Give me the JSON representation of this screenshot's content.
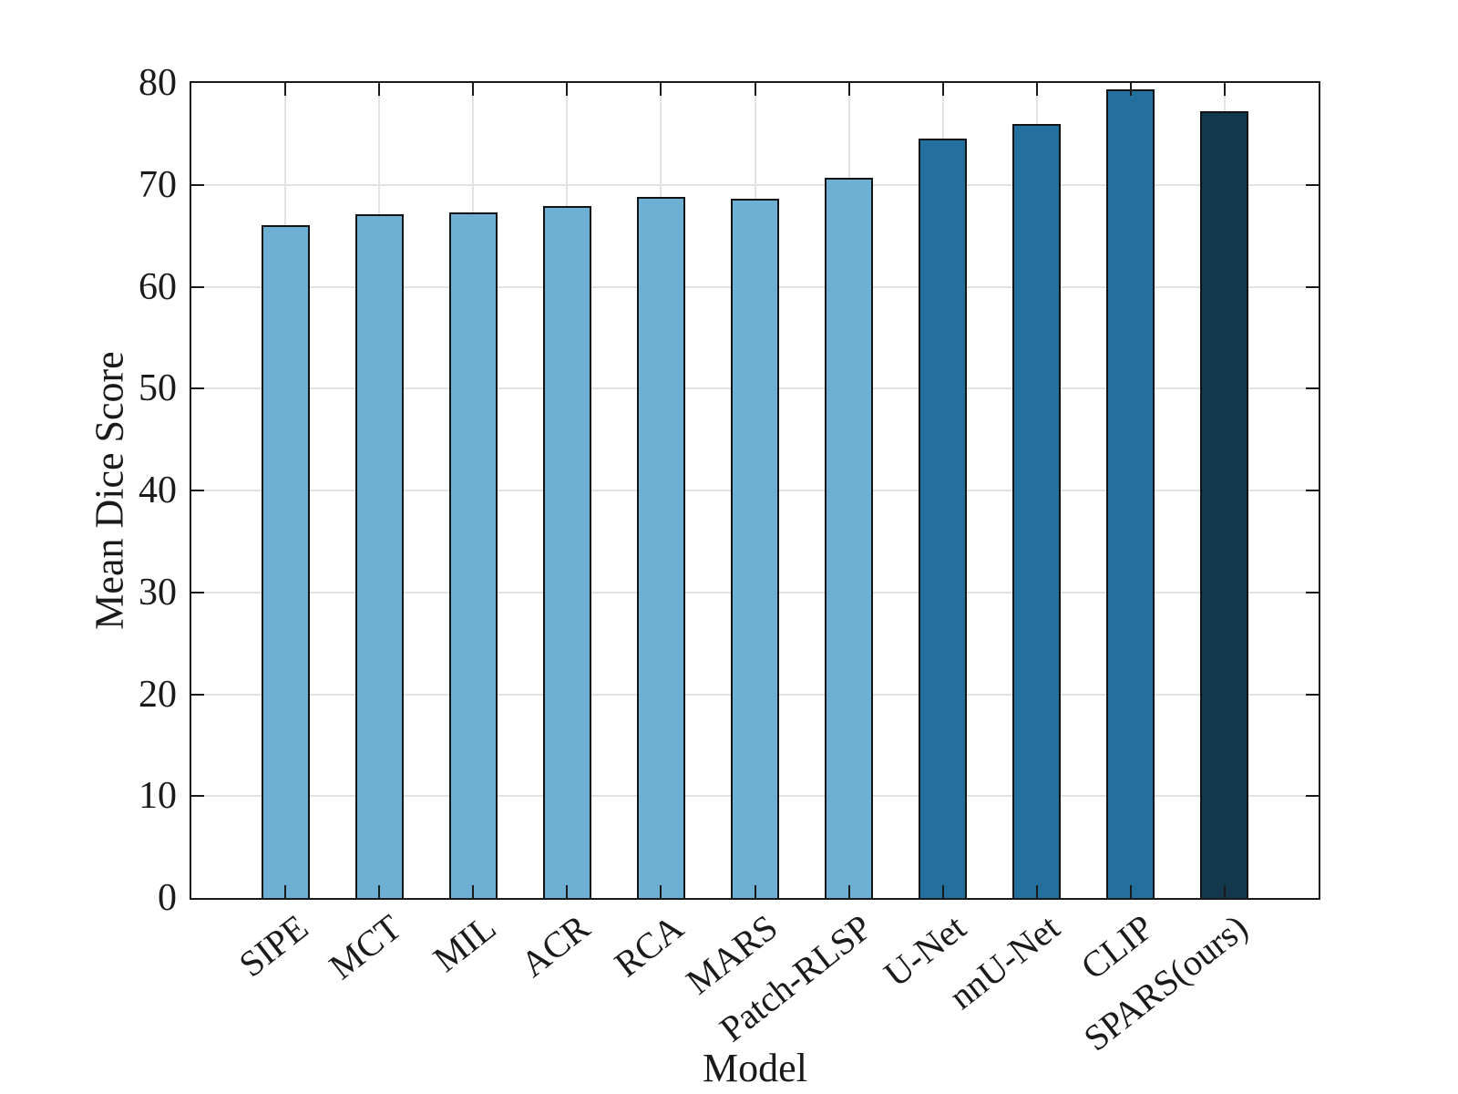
{
  "chart_data": {
    "type": "bar",
    "title": "",
    "xlabel": "Model",
    "ylabel": "Mean Dice Score",
    "categories": [
      "SIPE",
      "MCT",
      "MIL",
      "ACR",
      "RCA",
      "MARS",
      "Patch-RLSP",
      "U-Net",
      "nnU-Net",
      "CLIP",
      "SPARS(ours)"
    ],
    "values": [
      66.0,
      67.1,
      67.3,
      67.9,
      68.8,
      68.6,
      70.7,
      74.5,
      76.0,
      79.4,
      77.2
    ],
    "bar_colors": [
      "#6EAFD4",
      "#6EAFD4",
      "#6EAFD4",
      "#6EAFD4",
      "#6EAFD4",
      "#6EAFD4",
      "#6EAFD4",
      "#236F9E",
      "#236F9E",
      "#236F9E",
      "#13374D"
    ],
    "edge_color": "#111417",
    "ylim": [
      0,
      80
    ],
    "yticks": [
      0,
      10,
      20,
      30,
      40,
      50,
      60,
      70,
      80
    ],
    "xtick_rotation_deg": 38,
    "grid": true,
    "grid_color": "#e2e2e2",
    "axis_color": "#1a1a1a",
    "background_color": "#ffffff",
    "legend": null
  }
}
